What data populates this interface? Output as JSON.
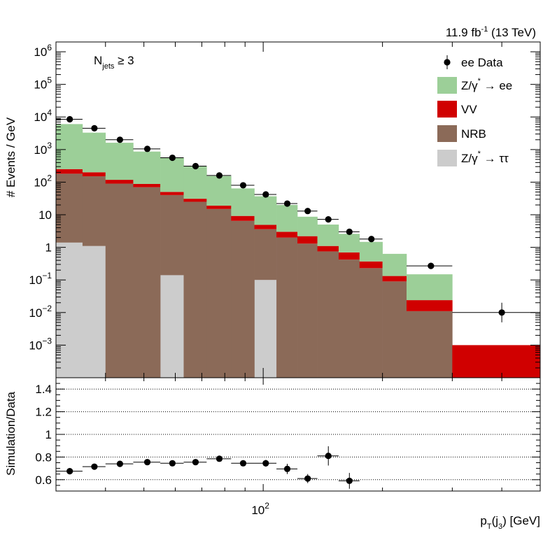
{
  "chart_data": [
    {
      "type": "bar",
      "stacked": true,
      "log_x": true,
      "log_y": true,
      "lumi_text": "11.9 fb",
      "lumi_sup": "-1",
      "lumi_tail": " (13 TeV)",
      "selection_label": "N",
      "selection_sub": "jets",
      "selection_tail": " ≥ 3",
      "ylabel": "# Events / GeV",
      "ylim": [
        0.0001,
        2000000
      ],
      "xlim": [
        30,
        500
      ],
      "bin_edges": [
        30,
        35,
        40,
        47,
        55,
        63,
        72,
        83,
        95,
        108,
        122,
        137,
        155,
        175,
        200,
        230,
        300,
        500
      ],
      "series": [
        {
          "name": "Z/γ* → ττ",
          "label_main": "Z/γ",
          "label_sup": "*",
          "label_tail": " → ττ",
          "color": "#cccccc",
          "values": [
            1.4,
            1.1,
            0,
            0,
            0.14,
            0,
            0,
            0,
            0.1,
            0,
            0,
            0,
            0,
            0,
            0,
            0,
            0
          ]
        },
        {
          "name": "NRB",
          "color": "#8b6a58",
          "values": [
            180,
            150,
            90,
            70,
            40,
            25,
            15,
            6.5,
            3.5,
            2.0,
            1.3,
            0.75,
            0.42,
            0.23,
            0.09,
            0.011,
            0
          ]
        },
        {
          "name": "VV",
          "color": "#d00000",
          "values": [
            70,
            50,
            28,
            18,
            10,
            6,
            4,
            2.7,
            1.3,
            1.0,
            0.9,
            0.35,
            0.28,
            0.14,
            0.042,
            0.013,
            0.001
          ]
        },
        {
          "name": "Z/γ* → ee",
          "label_main": "Z/γ",
          "label_sup": "*",
          "label_tail": " → ee",
          "color": "#9ccf98",
          "values": [
            5800,
            3100,
            1500,
            780,
            500,
            270,
            135,
            55,
            32,
            17,
            6.5,
            3.9,
            1.9,
            1.1,
            0.5,
            0.125,
            0
          ]
        }
      ],
      "data": {
        "name": "ee Data",
        "x": [
          32.5,
          37.5,
          43.5,
          51,
          59,
          67.5,
          77.5,
          89,
          101.5,
          115,
          129.5,
          146,
          165,
          187.5,
          215,
          265,
          400
        ],
        "y": [
          8500,
          4500,
          2000,
          1050,
          560,
          310,
          160,
          80,
          42,
          22,
          13,
          7.2,
          3.0,
          1.8,
          0,
          0.27,
          0.01
        ],
        "y_err_low": [
          0,
          0,
          0,
          0,
          0,
          0,
          0,
          0,
          0,
          0,
          0,
          0,
          0,
          0,
          0,
          0,
          0.005
        ],
        "y_err_high": [
          0,
          0,
          0,
          0,
          0,
          0,
          0,
          0,
          0,
          0,
          0,
          0,
          0,
          0,
          0,
          0,
          0.01
        ]
      },
      "legend_position": "top-right",
      "y_ticks_major": [
        0.001,
        0.01,
        0.1,
        1,
        10,
        100,
        1000,
        10000,
        100000,
        1000000
      ],
      "y_tick_labels": [
        {
          "base": "10",
          "exp": "−3"
        },
        {
          "base": "10",
          "exp": "−2"
        },
        {
          "base": "10",
          "exp": "−1"
        },
        {
          "base": "1",
          "exp": ""
        },
        {
          "base": "10",
          "exp": ""
        },
        {
          "base": "10",
          "exp": "2"
        },
        {
          "base": "10",
          "exp": "3"
        },
        {
          "base": "10",
          "exp": "4"
        },
        {
          "base": "10",
          "exp": "5"
        },
        {
          "base": "10",
          "exp": "6"
        }
      ]
    },
    {
      "type": "scatter",
      "ylabel": "Simulation/Data",
      "ylim": [
        0.5,
        1.5
      ],
      "y_ticks": [
        0.6,
        0.8,
        1,
        1.2,
        1.4
      ],
      "y_tick_labels": [
        "0.6",
        "0.8",
        "1",
        "1.2",
        "1.4"
      ],
      "gridlines": [
        0.6,
        0.8,
        1.0,
        1.2,
        1.4
      ],
      "xlabel_main": "p",
      "xlabel_sub": "T",
      "xlabel_mid": "(j",
      "xlabel_sub2": "3",
      "xlabel_tail": ") [GeV]",
      "x_tick_base": "10",
      "x_tick_exp": "2",
      "x_tick_value": 100,
      "points": {
        "x": [
          32.5,
          37.5,
          43.5,
          51,
          59,
          67.5,
          77.5,
          89,
          101.5,
          115,
          129.5,
          146,
          165
        ],
        "x_lo": [
          30,
          35,
          40,
          47,
          55,
          63,
          72,
          83,
          95,
          108,
          122,
          137,
          155
        ],
        "x_hi": [
          35,
          40,
          47,
          55,
          63,
          72,
          83,
          95,
          108,
          122,
          137,
          155,
          175
        ],
        "y": [
          0.675,
          0.715,
          0.74,
          0.755,
          0.745,
          0.755,
          0.785,
          0.745,
          0.745,
          0.695,
          0.61,
          0.81,
          0.59
        ],
        "y_err": [
          0.01,
          0.01,
          0.01,
          0.01,
          0.015,
          0.015,
          0.02,
          0.025,
          0.03,
          0.045,
          0.04,
          0.085,
          0.07
        ]
      }
    }
  ]
}
